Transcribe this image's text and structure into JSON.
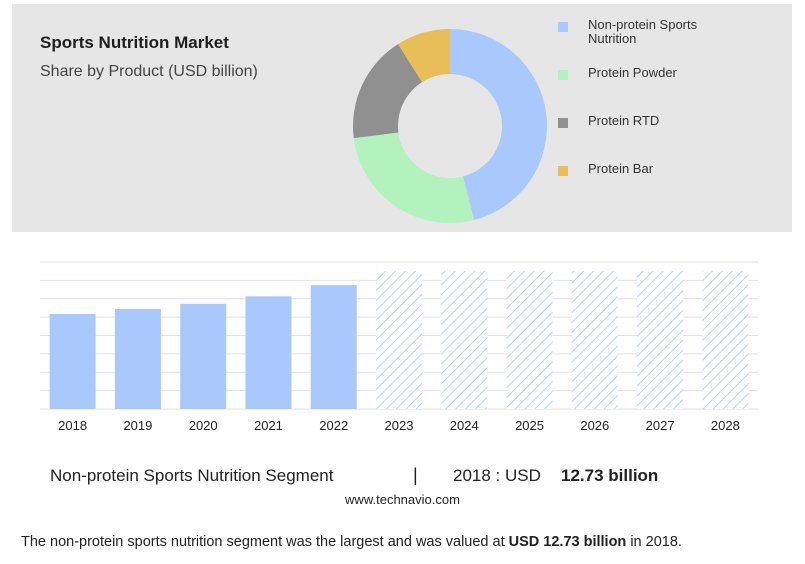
{
  "header": {
    "title": "Sports Nutrition Market",
    "subtitle": "Share by Product (USD billion)"
  },
  "chart_data": [
    {
      "type": "pie",
      "style": "donut",
      "title": "Sports Nutrition Market",
      "subtitle": "Share by Product (USD billion)",
      "slices": [
        {
          "label": "Non-protein Sports Nutrition",
          "value": 46,
          "color": "#a9c8fb"
        },
        {
          "label": "Protein Powder",
          "value": 27,
          "color": "#b3f2bd"
        },
        {
          "label": "Protein RTD",
          "value": 18,
          "color": "#909090"
        },
        {
          "label": "Protein Bar",
          "value": 9,
          "color": "#e8be58"
        }
      ],
      "legend_position": "right"
    },
    {
      "type": "bar",
      "categories": [
        "2018",
        "2019",
        "2020",
        "2021",
        "2022",
        "2023",
        "2024",
        "2025",
        "2026",
        "2027",
        "2028"
      ],
      "values": [
        12.73,
        13.4,
        14.1,
        15.1,
        16.6,
        null,
        null,
        null,
        null,
        null,
        null
      ],
      "forecast_categories": [
        "2023",
        "2024",
        "2025",
        "2026",
        "2027",
        "2028"
      ],
      "forecast_value": 18.5,
      "ylim": [
        0,
        19.7
      ],
      "grid": true,
      "bar_color": "#a9c8fb",
      "forecast_pattern_color": "#a9c8fb"
    }
  ],
  "segment": {
    "name": "Non-protein Sports Nutrition Segment",
    "separator": "|",
    "year_prefix": "2018 : USD",
    "value": "12.73 billion"
  },
  "source": "www.technavio.com",
  "caption": {
    "before": "The non-protein sports nutrition segment was the largest and was valued at ",
    "highlight": "USD 12.73 billion",
    "after": " in 2018."
  }
}
